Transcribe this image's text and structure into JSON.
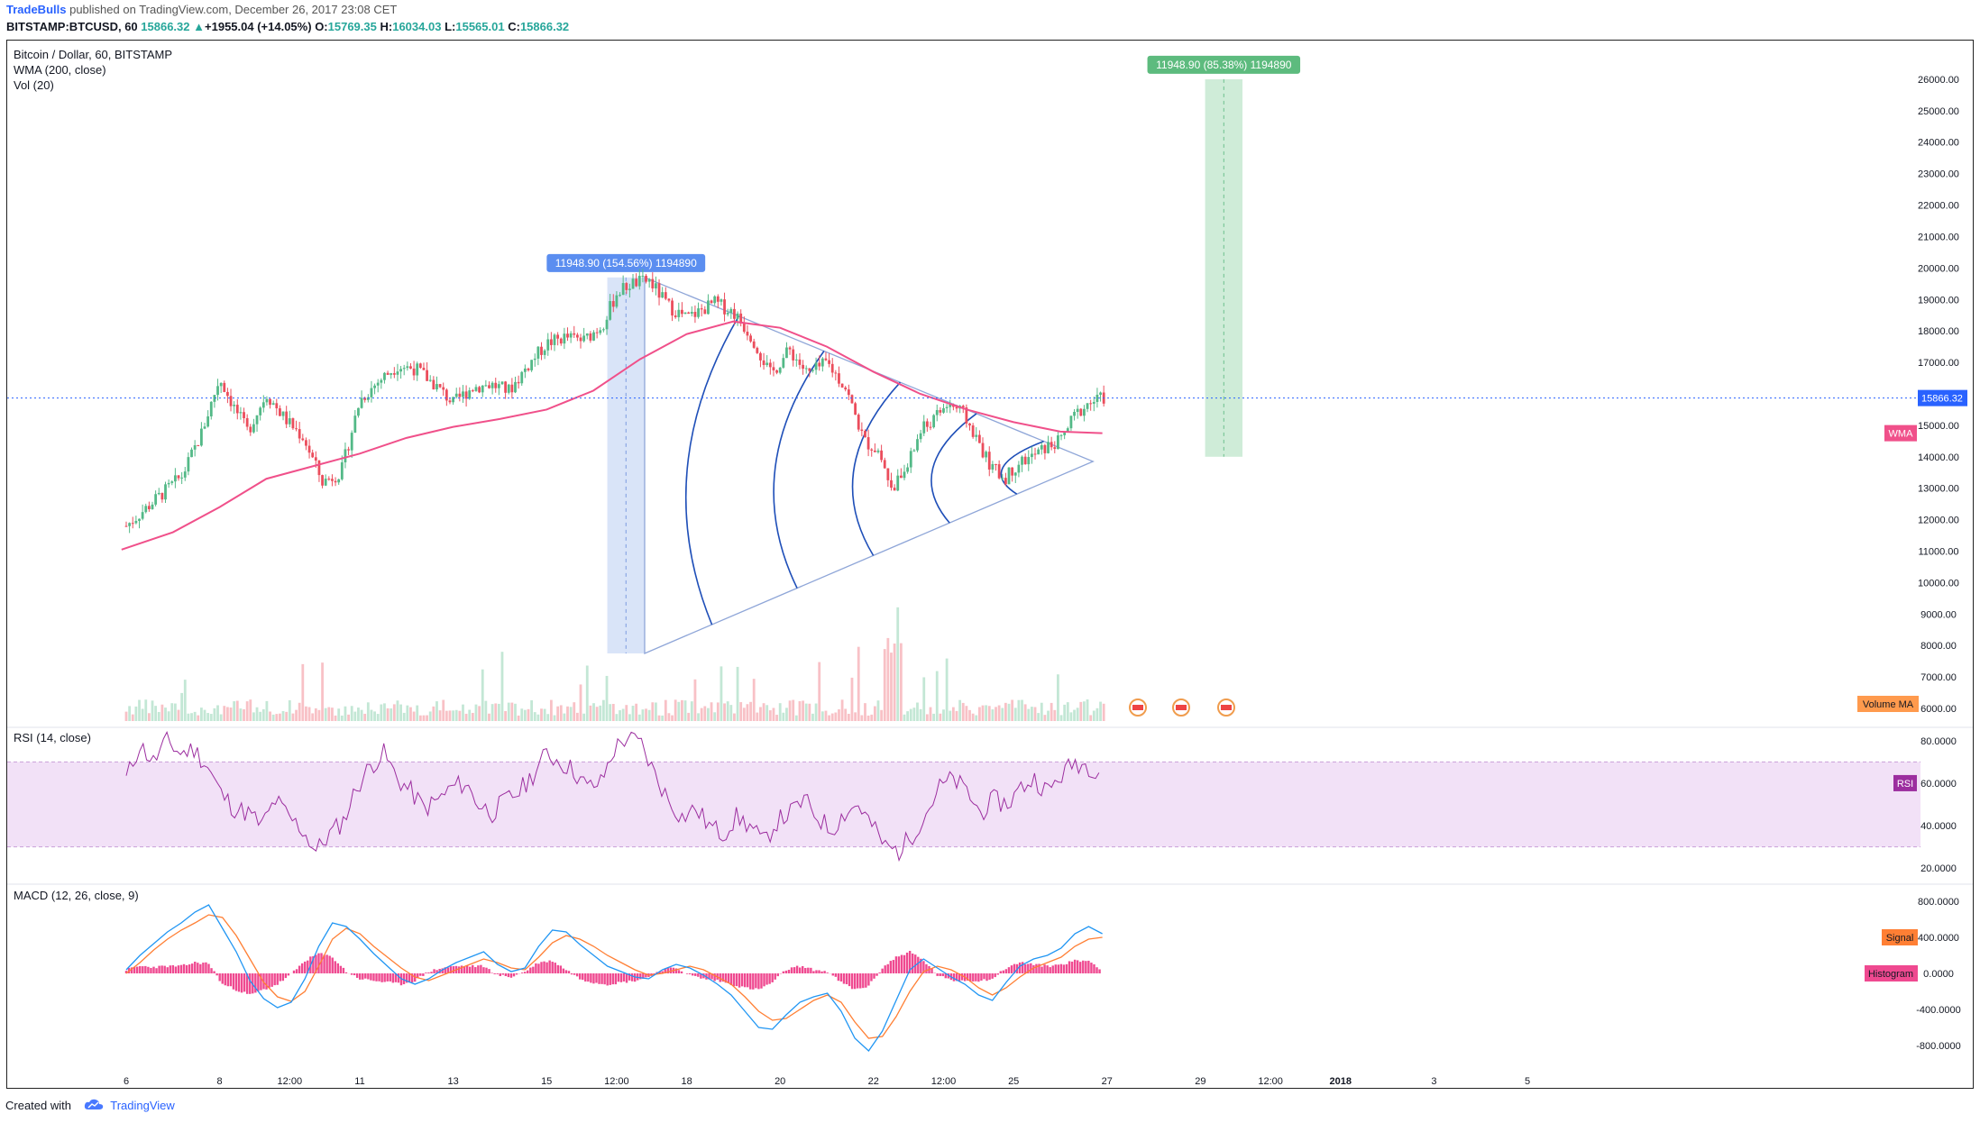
{
  "header": {
    "author": "TradeBulls",
    "published_text": "published on TradingView.com, December 26, 2017 23:08 CET",
    "symbol_line": "BITSTAMP:BTCUSD, 60",
    "last_price": "15866.32",
    "change_arrow": "▲",
    "change_text": "+1955.04 (+14.05%)",
    "open_label": "O:",
    "open_value": "15769.35",
    "high_label": "H:",
    "high_value": "16034.03",
    "low_label": "L:",
    "low_value": "15565.01",
    "close_label": "C:",
    "close_value": "15866.32"
  },
  "footer": {
    "created_with": "Created with",
    "brand": "TradingView",
    "logo_icon": "tradingview-cloud-icon"
  },
  "colors": {
    "up_candle": "#53b987",
    "down_candle": "#eb4d5c",
    "wma": "#f0508a",
    "rsi": "#9c2e9f",
    "rsi_band": "#f2e1f7",
    "macd": "#2196f3",
    "signal": "#ff7f34",
    "histogram": "#ef4990",
    "fib_arc": "#1f4fb8",
    "triangle": "#8fa6d8",
    "range_long": "#a8ddb8",
    "range_blue": "#b9cef3",
    "current_price_line": "#2962ff"
  },
  "chart_data": [
    {
      "type": "candlestick",
      "pane": "price",
      "title": "Bitcoin / Dollar, 60, BITSTAMP",
      "indicators": [
        "WMA (200, close)",
        "Vol (20)"
      ],
      "x_ticks": [
        "6",
        "8",
        "12:00",
        "11",
        "13",
        "15",
        "12:00",
        "18",
        "20",
        "22",
        "12:00",
        "25",
        "27",
        "29",
        "12:00",
        "2018",
        "3",
        "5"
      ],
      "y_ticks": [
        "26000.00",
        "25000.00",
        "24000.00",
        "23000.00",
        "22000.00",
        "21000.00",
        "20000.00",
        "19000.00",
        "18000.00",
        "17000.00",
        "16000.00",
        "15000.00",
        "14000.00",
        "13000.00",
        "12000.00",
        "11000.00",
        "10000.00",
        "9000.00",
        "8000.00",
        "7000.00",
        "6000.00"
      ],
      "ylim": [
        5600,
        26800
      ],
      "last_price_label": "15866.32",
      "wma_label": "WMA",
      "volume_label": "Volume MA",
      "price_path": [
        {
          "d": 6.0,
          "p": 11800
        },
        {
          "d": 6.6,
          "p": 12600
        },
        {
          "d": 7.2,
          "p": 13400
        },
        {
          "d": 7.6,
          "p": 14700
        },
        {
          "d": 8.0,
          "p": 16500
        },
        {
          "d": 8.3,
          "p": 15600
        },
        {
          "d": 8.6,
          "p": 14800
        },
        {
          "d": 9.0,
          "p": 16000
        },
        {
          "d": 9.4,
          "p": 15200
        },
        {
          "d": 9.8,
          "p": 14600
        },
        {
          "d": 10.2,
          "p": 13200
        },
        {
          "d": 10.6,
          "p": 13500
        },
        {
          "d": 11.0,
          "p": 15800
        },
        {
          "d": 11.4,
          "p": 16400
        },
        {
          "d": 11.8,
          "p": 16900
        },
        {
          "d": 12.2,
          "p": 16800
        },
        {
          "d": 12.6,
          "p": 16300
        },
        {
          "d": 13.0,
          "p": 15700
        },
        {
          "d": 13.4,
          "p": 16200
        },
        {
          "d": 13.8,
          "p": 16300
        },
        {
          "d": 14.2,
          "p": 16100
        },
        {
          "d": 14.6,
          "p": 16900
        },
        {
          "d": 15.0,
          "p": 17600
        },
        {
          "d": 15.4,
          "p": 17800
        },
        {
          "d": 15.8,
          "p": 17700
        },
        {
          "d": 16.2,
          "p": 18200
        },
        {
          "d": 16.5,
          "p": 19200
        },
        {
          "d": 16.8,
          "p": 19500
        },
        {
          "d": 17.2,
          "p": 19600
        },
        {
          "d": 17.6,
          "p": 18800
        },
        {
          "d": 18.0,
          "p": 18400
        },
        {
          "d": 18.6,
          "p": 18900
        },
        {
          "d": 19.0,
          "p": 18600
        },
        {
          "d": 19.4,
          "p": 17800
        },
        {
          "d": 19.8,
          "p": 16600
        },
        {
          "d": 20.2,
          "p": 17400
        },
        {
          "d": 20.6,
          "p": 16600
        },
        {
          "d": 21.0,
          "p": 17000
        },
        {
          "d": 21.4,
          "p": 16200
        },
        {
          "d": 21.8,
          "p": 14500
        },
        {
          "d": 22.1,
          "p": 14200
        },
        {
          "d": 22.4,
          "p": 13000
        },
        {
          "d": 22.7,
          "p": 13600
        },
        {
          "d": 23.0,
          "p": 14800
        },
        {
          "d": 23.3,
          "p": 15200
        },
        {
          "d": 23.6,
          "p": 15700
        },
        {
          "d": 23.9,
          "p": 15400
        },
        {
          "d": 24.2,
          "p": 14600
        },
        {
          "d": 24.5,
          "p": 13700
        },
        {
          "d": 24.8,
          "p": 13300
        },
        {
          "d": 25.1,
          "p": 13800
        },
        {
          "d": 25.4,
          "p": 14000
        },
        {
          "d": 25.7,
          "p": 14300
        },
        {
          "d": 26.0,
          "p": 14500
        },
        {
          "d": 26.3,
          "p": 15300
        },
        {
          "d": 26.6,
          "p": 15700
        },
        {
          "d": 26.9,
          "p": 15866
        }
      ],
      "wma_path": [
        {
          "d": 5.9,
          "p": 11050
        },
        {
          "d": 7.0,
          "p": 11600
        },
        {
          "d": 8.0,
          "p": 12400
        },
        {
          "d": 9.0,
          "p": 13300
        },
        {
          "d": 10.0,
          "p": 13700
        },
        {
          "d": 11.0,
          "p": 14100
        },
        {
          "d": 12.0,
          "p": 14600
        },
        {
          "d": 13.0,
          "p": 14950
        },
        {
          "d": 14.0,
          "p": 15200
        },
        {
          "d": 15.0,
          "p": 15500
        },
        {
          "d": 16.0,
          "p": 16100
        },
        {
          "d": 17.0,
          "p": 17100
        },
        {
          "d": 18.0,
          "p": 17900
        },
        {
          "d": 19.0,
          "p": 18300
        },
        {
          "d": 20.0,
          "p": 18100
        },
        {
          "d": 21.0,
          "p": 17500
        },
        {
          "d": 22.0,
          "p": 16700
        },
        {
          "d": 23.0,
          "p": 16000
        },
        {
          "d": 24.0,
          "p": 15500
        },
        {
          "d": 25.0,
          "p": 15100
        },
        {
          "d": 26.0,
          "p": 14800
        },
        {
          "d": 26.9,
          "p": 14750
        }
      ],
      "annotations": [
        {
          "type": "range",
          "label": "11948.90 (154.56%) 1194890",
          "d_from": 16.3,
          "d_to": 17.1,
          "p_from": 7750,
          "p_to": 19700,
          "color": "#b9cef3"
        },
        {
          "type": "range",
          "label": "11948.90 (85.38%) 1194890",
          "d_from": 29.1,
          "d_to": 29.9,
          "p_from": 14000,
          "p_to": 26000,
          "color": "#a8ddb8"
        },
        {
          "type": "triangle",
          "points": [
            [
              17.1,
              19700
            ],
            [
              17.1,
              7750
            ],
            [
              26.7,
              13850
            ]
          ]
        },
        {
          "type": "fib_arcs",
          "count": 5
        }
      ]
    },
    {
      "type": "line",
      "pane": "rsi",
      "title": "RSI (14, close)",
      "y_ticks": [
        "80.0000",
        "60.0000",
        "40.0000",
        "20.0000"
      ],
      "ylim": [
        15,
        85
      ],
      "band": [
        30,
        70
      ],
      "series_label": "RSI",
      "values": [
        62,
        78,
        70,
        80,
        74,
        76,
        68,
        55,
        48,
        46,
        40,
        52,
        44,
        38,
        28,
        36,
        42,
        58,
        68,
        74,
        62,
        56,
        48,
        52,
        58,
        60,
        50,
        46,
        52,
        56,
        64,
        74,
        70,
        66,
        58,
        60,
        76,
        82,
        78,
        64,
        52,
        44,
        48,
        40,
        36,
        44,
        40,
        32,
        42,
        46,
        52,
        44,
        38,
        46,
        50,
        40,
        30,
        28,
        36,
        46,
        58,
        62,
        56,
        46,
        52,
        50,
        58,
        62,
        56,
        64,
        70,
        68,
        66
      ]
    },
    {
      "type": "line",
      "pane": "macd",
      "title": "MACD (12, 26, close, 9)",
      "y_ticks": [
        "800.0000",
        "400.0000",
        "0.0000",
        "-400.0000",
        "-800.0000"
      ],
      "ylim": [
        -950,
        950
      ],
      "series": [
        {
          "name": "Signal",
          "color": "#ff7f34",
          "values": [
            0,
            120,
            260,
            380,
            480,
            560,
            650,
            620,
            420,
            160,
            -100,
            -260,
            -310,
            -200,
            80,
            380,
            500,
            440,
            300,
            180,
            60,
            -40,
            -80,
            -20,
            40,
            100,
            160,
            120,
            60,
            40,
            180,
            340,
            420,
            380,
            300,
            200,
            120,
            40,
            -20,
            0,
            40,
            80,
            40,
            -40,
            -120,
            -260,
            -420,
            -520,
            -500,
            -400,
            -300,
            -240,
            -320,
            -540,
            -720,
            -700,
            -480,
            -200,
            20,
            80,
            40,
            -40,
            -160,
            -240,
            -160,
            -40,
            60,
            120,
            180,
            300,
            380,
            400
          ]
        },
        {
          "name": "MACD",
          "color": "#2196f3",
          "values": [
            40,
            200,
            330,
            460,
            560,
            680,
            760,
            500,
            240,
            -80,
            -280,
            -380,
            -320,
            -60,
            300,
            560,
            520,
            380,
            220,
            80,
            -60,
            -120,
            -60,
            40,
            120,
            180,
            240,
            100,
            20,
            60,
            300,
            480,
            460,
            320,
            200,
            80,
            20,
            -40,
            -60,
            40,
            100,
            60,
            -20,
            -120,
            -240,
            -420,
            -600,
            -620,
            -460,
            -320,
            -260,
            -220,
            -420,
            -720,
            -860,
            -640,
            -300,
            40,
            160,
            60,
            -40,
            -120,
            -240,
            -300,
            -100,
            80,
            160,
            200,
            280,
            440,
            520,
            440
          ]
        },
        {
          "name": "Histogram",
          "color": "#ef4990",
          "values": [
            40,
            80,
            70,
            80,
            80,
            120,
            110,
            -120,
            -180,
            -240,
            -180,
            -120,
            -10,
            140,
            220,
            180,
            20,
            -60,
            -80,
            -100,
            -120,
            -80,
            20,
            60,
            80,
            80,
            80,
            -20,
            -40,
            20,
            120,
            140,
            40,
            -60,
            -100,
            -120,
            -100,
            -80,
            -40,
            40,
            60,
            -20,
            -60,
            -80,
            -120,
            -160,
            -180,
            -100,
            40,
            80,
            40,
            20,
            -100,
            -180,
            -140,
            60,
            180,
            240,
            140,
            -20,
            -80,
            -80,
            -80,
            -60,
            60,
            120,
            100,
            80,
            100,
            140,
            140,
            40
          ]
        }
      ]
    }
  ]
}
